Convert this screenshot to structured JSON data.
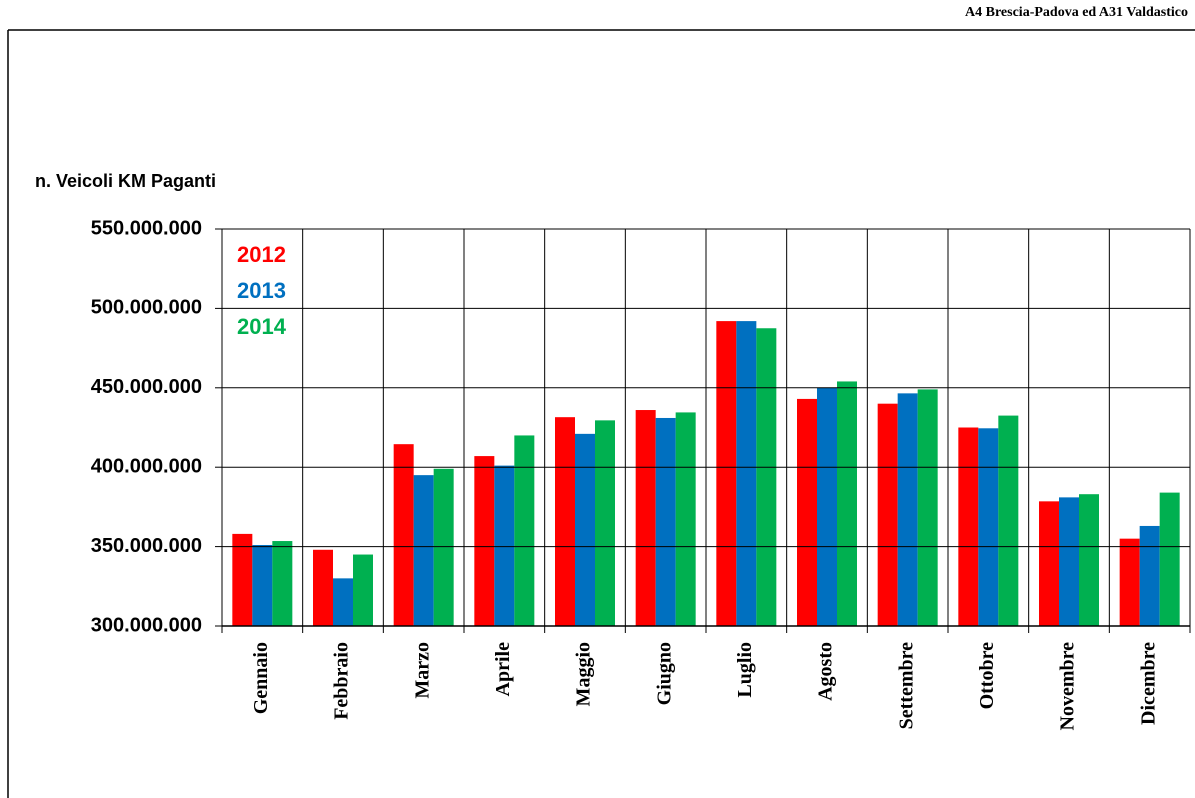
{
  "chart_data": {
    "type": "bar",
    "header": "A4 Brescia-Padova ed A31 Valdastico",
    "ylabel": "n. Veicoli KM Paganti",
    "categories": [
      "Gennaio",
      "Febbraio",
      "Marzo",
      "Aprile",
      "Maggio",
      "Giugno",
      "Luglio",
      "Agosto",
      "Settembre",
      "Ottobre",
      "Novembre",
      "Dicembre"
    ],
    "series": [
      {
        "name": "2012",
        "color": "#ff0000",
        "values": [
          358000000,
          348000000,
          414500000,
          407000000,
          431500000,
          436000000,
          492000000,
          443000000,
          440000000,
          425000000,
          378500000,
          355000000
        ]
      },
      {
        "name": "2013",
        "color": "#0070c0",
        "values": [
          351000000,
          330000000,
          395000000,
          401000000,
          421000000,
          431000000,
          492000000,
          450000000,
          446500000,
          424500000,
          381000000,
          363000000
        ]
      },
      {
        "name": "2014",
        "color": "#00b050",
        "values": [
          353500000,
          345000000,
          399000000,
          420000000,
          429500000,
          434500000,
          487500000,
          454000000,
          449000000,
          432500000,
          383000000,
          384000000
        ]
      }
    ],
    "ylim": [
      300000000,
      550000000
    ],
    "yticks": [
      {
        "value": 300000000,
        "label": "300.000.000"
      },
      {
        "value": 350000000,
        "label": "350.000.000"
      },
      {
        "value": 400000000,
        "label": "400.000.000"
      },
      {
        "value": 450000000,
        "label": "450.000.000"
      },
      {
        "value": 500000000,
        "label": "500.000.000"
      },
      {
        "value": 550000000,
        "label": "550.000.000"
      }
    ],
    "grid": true,
    "legend": "upper left"
  }
}
